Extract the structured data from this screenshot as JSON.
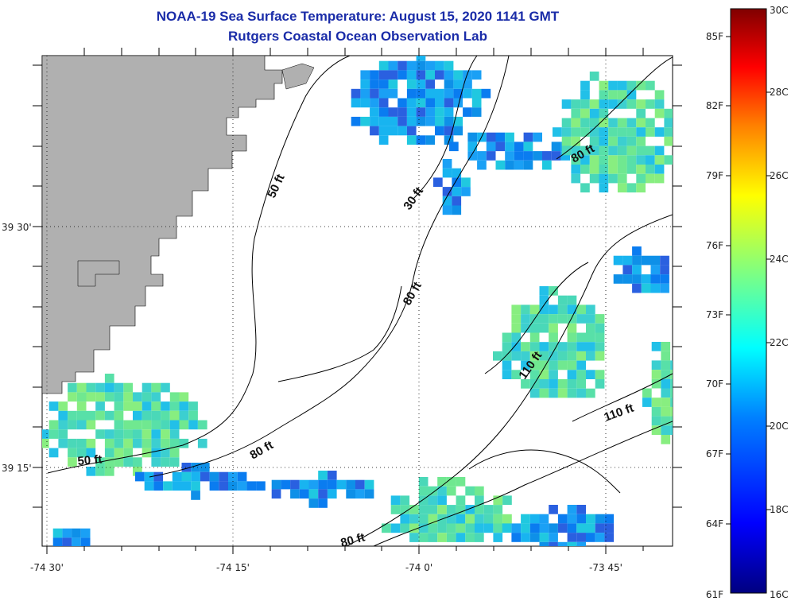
{
  "title": {
    "line1": "NOAA-19 Sea Surface Temperature:  August 15, 2020 1141 GMT",
    "line2": "Rutgers Coastal Ocean Observation Lab"
  },
  "axes": {
    "x_ticks": [
      {
        "value": -74.5,
        "label": "-74 30'"
      },
      {
        "value": -74.25,
        "label": "-74 15'"
      },
      {
        "value": -74.0,
        "label": "-74 0'"
      },
      {
        "value": -73.75,
        "label": "-73 45'"
      }
    ],
    "y_ticks": [
      {
        "value": 39.5,
        "label": "39 30'"
      },
      {
        "value": 39.25,
        "label": "39 15'"
      }
    ]
  },
  "depth_contour_labels": [
    {
      "text": "50 ft",
      "rotation": -65
    },
    {
      "text": "30 ft",
      "rotation": -55
    },
    {
      "text": "80 ft",
      "rotation": -30
    },
    {
      "text": "80 ft",
      "rotation": -60
    },
    {
      "text": "110 ft",
      "rotation": -55
    },
    {
      "text": "110 ft",
      "rotation": -20
    },
    {
      "text": "50 ft",
      "rotation": -5
    },
    {
      "text": "80 ft",
      "rotation": -30
    },
    {
      "text": "80 ft",
      "rotation": -15
    }
  ],
  "colorbar": {
    "fahrenheit": [
      "85F",
      "82F",
      "79F",
      "76F",
      "73F",
      "70F",
      "67F",
      "64F",
      "61F"
    ],
    "celsius": [
      "30C",
      "28C",
      "26C",
      "24C",
      "22C",
      "20C",
      "18C",
      "16C"
    ],
    "colors": [
      "#000080",
      "#0000ff",
      "#0080ff",
      "#00ffff",
      "#80ff80",
      "#ffff00",
      "#ff8000",
      "#ff0000",
      "#800000"
    ]
  },
  "legend_colors": {
    "land": "#b0b0b0",
    "title_color": "#1a2ca8",
    "missing": "#ffffff"
  }
}
